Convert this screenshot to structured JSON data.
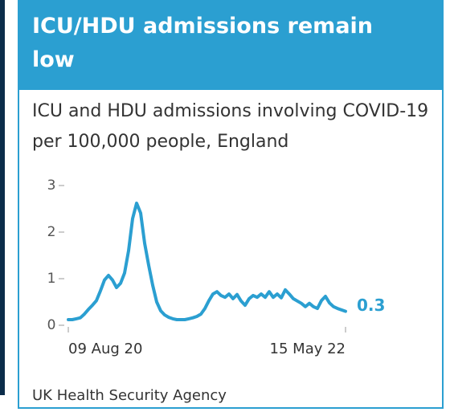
{
  "header": {
    "title": "ICU/HDU admissions remain low"
  },
  "chart_data": {
    "type": "line",
    "title": "ICU and HDU admissions involving COVID-19 per 100,000 people, England",
    "source": "UK Health Security Agency",
    "categories": [
      "09 Aug 20",
      null,
      null,
      null,
      null,
      null,
      null,
      null,
      null,
      null,
      null,
      null,
      null,
      null,
      null,
      null,
      null,
      null,
      null,
      null,
      null,
      null,
      null,
      null,
      null,
      null,
      null,
      null,
      null,
      null,
      null,
      null,
      null,
      null,
      null,
      null,
      null,
      null,
      null,
      null,
      null,
      null,
      null,
      null,
      null,
      null,
      null,
      null,
      null,
      null,
      null,
      null,
      null,
      null,
      null,
      null,
      null,
      null,
      null,
      null,
      null,
      null,
      null,
      null,
      null,
      null,
      null,
      null,
      null,
      "15 May 22"
    ],
    "series": [
      {
        "color": "#2b9fd1",
        "values": [
          0.12,
          0.12,
          0.14,
          0.16,
          0.24,
          0.34,
          0.43,
          0.53,
          0.74,
          0.97,
          1.07,
          0.97,
          0.81,
          0.9,
          1.12,
          1.6,
          2.29,
          2.62,
          2.41,
          1.76,
          1.29,
          0.86,
          0.5,
          0.31,
          0.22,
          0.17,
          0.14,
          0.12,
          0.12,
          0.12,
          0.14,
          0.16,
          0.19,
          0.24,
          0.36,
          0.53,
          0.67,
          0.72,
          0.64,
          0.6,
          0.67,
          0.57,
          0.66,
          0.52,
          0.43,
          0.57,
          0.64,
          0.6,
          0.67,
          0.6,
          0.72,
          0.6,
          0.67,
          0.59,
          0.76,
          0.67,
          0.57,
          0.52,
          0.47,
          0.4,
          0.47,
          0.4,
          0.36,
          0.53,
          0.62,
          0.48,
          0.4,
          0.36,
          0.33,
          0.3
        ]
      }
    ],
    "ylim": [
      0,
      3
    ],
    "yticks": [
      0,
      1,
      2,
      3
    ]
  }
}
